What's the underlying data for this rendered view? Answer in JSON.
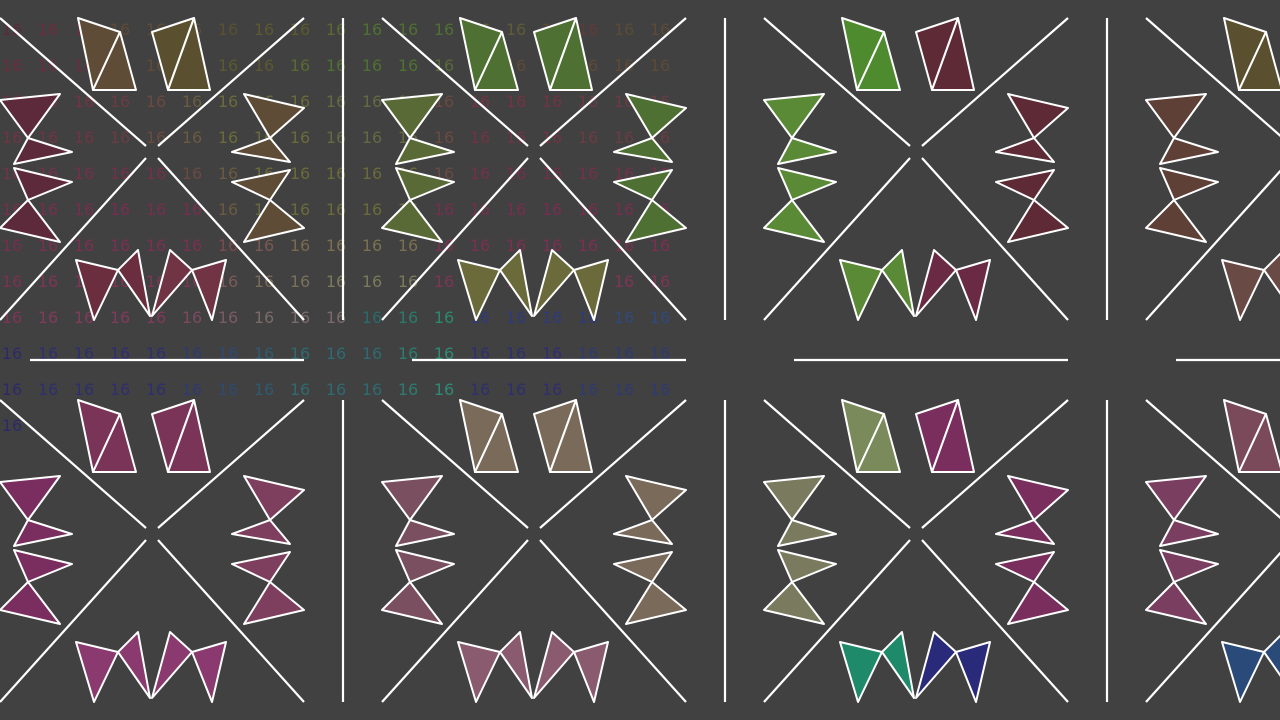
{
  "number_label": "16",
  "grid_color_rows": [
    [
      "#5c2a3a",
      "#6a2e3e",
      "#6a2e3e",
      "#5c4a36",
      "#5e4c36",
      "#5e4c36",
      "#5a5030",
      "#5a5a2e",
      "#5a5a2e",
      "#5a6a30",
      "#4e7032",
      "#4e7032",
      "#4e7032",
      "#5a6a36",
      "#5e5c36",
      "#5e4a36",
      "#603a38",
      "#5c4a36",
      "#5c4a36"
    ],
    [
      "#6a2e3e",
      "#6a2e3e",
      "#6a2e3e",
      "#5e4c36",
      "#5e4c36",
      "#5a5030",
      "#5a5a2e",
      "#5a5a2e",
      "#5a6a30",
      "#4e7032",
      "#4e7032",
      "#4e7032",
      "#5a6a36",
      "#5e5c36",
      "#5e4a36",
      "#603a38",
      "#5c4a36",
      "#5c4a36",
      "#5c4a36"
    ],
    [
      "#6a2e3e",
      "#703444",
      "#703444",
      "#6a3c44",
      "#6a4a40",
      "#6a5a40",
      "#6a6a3a",
      "#6a6a3a",
      "#6a6a3a",
      "#626a40",
      "#626a40",
      "#626a40",
      "#6a4a40",
      "#703444",
      "#703444",
      "#703444",
      "#6a3c44",
      "#6a3c44",
      "#6a3c44"
    ],
    [
      "#703444",
      "#703444",
      "#703444",
      "#6a3c44",
      "#6a4a40",
      "#6a5a40",
      "#6a6a3a",
      "#6a6a3a",
      "#6a6a3a",
      "#626a40",
      "#626a40",
      "#626a40",
      "#6a4a40",
      "#703444",
      "#703444",
      "#703444",
      "#6a3c44",
      "#6a3c44",
      "#6a3c44"
    ],
    [
      "#703444",
      "#73304a",
      "#73304a",
      "#73304a",
      "#73304a",
      "#6a4a40",
      "#6a5a40",
      "#6a6a3a",
      "#6a6a3a",
      "#6a6a3a",
      "#6a6a3a",
      "#6a6a3a",
      "#6a4a40",
      "#73304a",
      "#73304a",
      "#73304a",
      "#73304a",
      "#73304a",
      "#73304a"
    ],
    [
      "#73304a",
      "#762e4e",
      "#762e4e",
      "#762e4e",
      "#762e4e",
      "#762e4e",
      "#6a5a40",
      "#6a6a3a",
      "#6a6a3a",
      "#6a6a3a",
      "#6a6a3a",
      "#6a6a3a",
      "#762e4e",
      "#762e4e",
      "#762e4e",
      "#762e4e",
      "#762e4e",
      "#762e4e",
      "#762e4e"
    ],
    [
      "#762e4e",
      "#7a3050",
      "#7a3050",
      "#7a3050",
      "#7a3050",
      "#7a3050",
      "#7a4a50",
      "#7a5a50",
      "#7a6a50",
      "#7a7050",
      "#7a7050",
      "#7a7050",
      "#7a3050",
      "#7a3050",
      "#7a3050",
      "#7a3050",
      "#7a3050",
      "#7a3050",
      "#7a3050"
    ],
    [
      "#7a3050",
      "#7e3454",
      "#7e3454",
      "#7e3454",
      "#7e3454",
      "#7e3454",
      "#7a5a58",
      "#7a6a58",
      "#7a7058",
      "#7a7a5a",
      "#7a7a5a",
      "#7a7a5a",
      "#7e3454",
      "#7e3454",
      "#7e3454",
      "#7e3454",
      "#7e3454",
      "#7e3454",
      "#7e3454"
    ],
    [
      "#7e3454",
      "#803a5a",
      "#803a5a",
      "#803a5a",
      "#803a5a",
      "#7a4a60",
      "#7a5a66",
      "#7a6a6a",
      "#7a6a6a",
      "#7a6a6a",
      "#2a6a6a",
      "#2a7a6a",
      "#2a8a6e",
      "#2e3a7a",
      "#2e3a7a",
      "#2e3a7a",
      "#2e3a7a",
      "#2e4a7a",
      "#2e4a7a"
    ],
    [
      "#2e2a6a",
      "#2e2e70",
      "#2e2e70",
      "#2e2e70",
      "#2e2e70",
      "#2e3a70",
      "#2e4a70",
      "#2e5a70",
      "#2e6a70",
      "#2e6a70",
      "#2e6a70",
      "#2e7a70",
      "#2e8a74",
      "#2e2e70",
      "#2e2e70",
      "#2e2e70",
      "#2e3a70",
      "#2e3a70",
      "#2e3a70"
    ],
    [
      "#2e2a6a",
      "#2e2e70",
      "#2e2e70",
      "#2e2e70",
      "#2e2e70",
      "#2e3a70",
      "#2e4a70",
      "#2e5a70",
      "#2e6a70",
      "#2e6a70",
      "#2e6a70",
      "#2e7a70",
      "#2e8a74",
      "#2e2e70",
      "#2e2e70",
      "#2e2e70",
      "#2e3a70",
      "#2e3a70",
      "#2e3a70"
    ],
    [
      "#2e2a6a"
    ]
  ],
  "tiles": [
    {
      "top": [
        "#5e4c36",
        "#5e4c36",
        "#5a5030",
        "#5a5030"
      ],
      "left": [
        "#5c2a3a",
        "#5c2a3a",
        "#5c2a3a",
        "#5c2a3a"
      ],
      "right": [
        "#5e4c36",
        "#5e4c36",
        "#5e4c36",
        "#5e4c36"
      ],
      "bottom": [
        "#6a2e3e",
        "#6a2e3e",
        "#703444",
        "#703444"
      ]
    },
    {
      "top": [
        "#4e7032",
        "#4e7032",
        "#4e7032",
        "#4e7032"
      ],
      "left": [
        "#5a6a36",
        "#5a6a36",
        "#5a6a36",
        "#5a6a36"
      ],
      "right": [
        "#4e7032",
        "#4e7032",
        "#4e7032",
        "#4e7032"
      ],
      "bottom": [
        "#6a6a3a",
        "#6a6a3a",
        "#6a6a3a",
        "#6a6a3a"
      ]
    },
    {
      "top": [
        "#4e8a2e",
        "#4e8a2e",
        "#5e2a36",
        "#5e2a36"
      ],
      "left": [
        "#5a8a36",
        "#5a8a36",
        "#5a8a36",
        "#5a8a36"
      ],
      "right": [
        "#5e2a36",
        "#5e2a36",
        "#5e2a36",
        "#5e2a36"
      ],
      "bottom": [
        "#5a8a36",
        "#5a8a36",
        "#6a2a44",
        "#6a2a44"
      ]
    },
    {
      "top": [
        "#5a5030",
        "#5a5030",
        "#5a5030",
        "#5a5030"
      ],
      "left": [
        "#5e4036",
        "#5e4036",
        "#5e4036",
        "#5e4036"
      ],
      "right": [
        "#5e4036",
        "#5e4036",
        "#5e4036",
        "#5e4036"
      ],
      "bottom": [
        "#6a4a44",
        "#6a4a44",
        "#6a4a44",
        "#6a4a44"
      ]
    },
    {
      "top": [
        "#7a3458",
        "#7a3458",
        "#7a3458",
        "#7a3458"
      ],
      "left": [
        "#7a2e60",
        "#7a2e60",
        "#7a2e60",
        "#7a2e60"
      ],
      "right": [
        "#7e3e5e",
        "#7e3e5e",
        "#7e3e5e",
        "#7e3e5e"
      ],
      "bottom": [
        "#8a3a6e",
        "#8a3a6e",
        "#8a3a6e",
        "#8a3a6e"
      ]
    },
    {
      "top": [
        "#7a6a5a",
        "#7a6a5a",
        "#7a6a5a",
        "#7a6a5a"
      ],
      "left": [
        "#7a5060",
        "#7a5060",
        "#7a5060",
        "#7a5060"
      ],
      "right": [
        "#7a6a5a",
        "#7a6a5a",
        "#7a6a5a",
        "#7a6a5a"
      ],
      "bottom": [
        "#8a5a6e",
        "#8a5a6e",
        "#8a5a6e",
        "#8a5a6e"
      ]
    },
    {
      "top": [
        "#7a8a5a",
        "#7a8a5a",
        "#7a2e5e",
        "#7a2e5e"
      ],
      "left": [
        "#7a7a5e",
        "#7a7a5e",
        "#7a7a5e",
        "#7a7a5e"
      ],
      "right": [
        "#7a2e5e",
        "#7a2e5e",
        "#7a2e5e",
        "#7a2e5e"
      ],
      "bottom": [
        "#1e8a6a",
        "#1e8a6a",
        "#2a2a7a",
        "#2a2a7a"
      ]
    },
    {
      "top": [
        "#7a4a5a",
        "#7a4a5a",
        "#7a4a5a",
        "#7a4a5a"
      ],
      "left": [
        "#7a3e60",
        "#7a3e60",
        "#7a3e60",
        "#7a3e60"
      ],
      "right": [
        "#7a3e60",
        "#7a3e60",
        "#7a3e60",
        "#7a3e60"
      ],
      "bottom": [
        "#2a4a7a",
        "#2a4a7a",
        "#2a4a7a",
        "#2a4a7a"
      ]
    }
  ]
}
